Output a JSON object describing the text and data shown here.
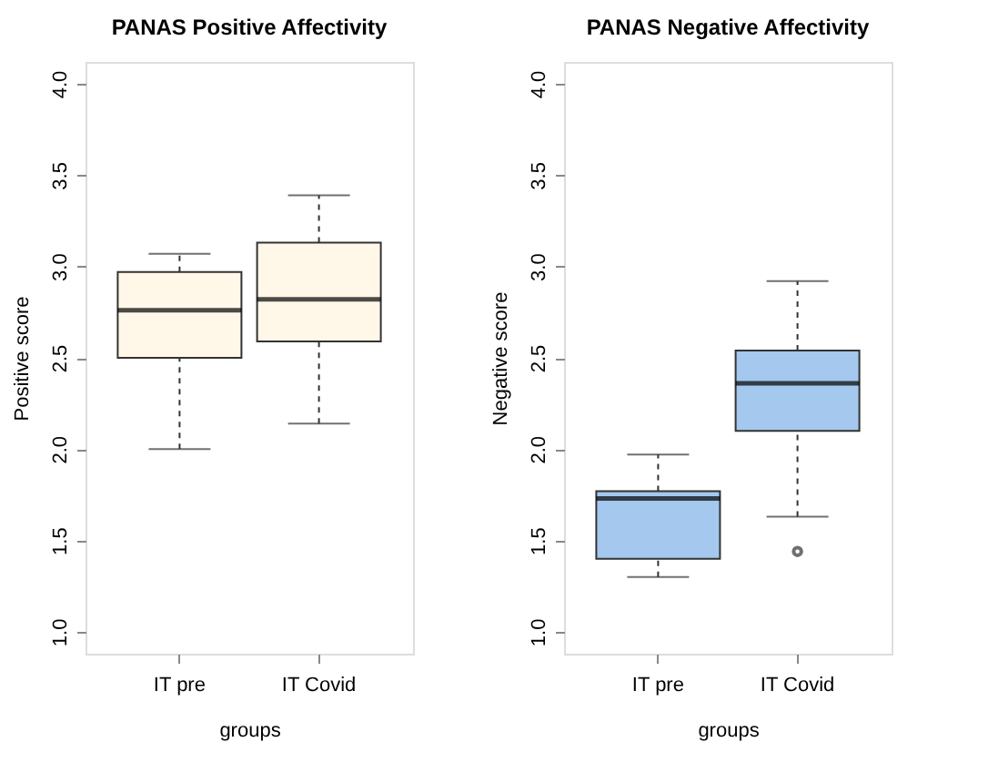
{
  "chart_data": [
    {
      "type": "box",
      "title": "PANAS Positive Affectivity",
      "xlabel": "groups",
      "ylabel": "Positive score",
      "categories": [
        "IT pre",
        "IT Covid"
      ],
      "color": "#fff8e8",
      "boxes": [
        {
          "low": 2.0,
          "q1": 2.5,
          "median": 2.76,
          "q3": 2.97,
          "high": 3.07
        },
        {
          "low": 2.14,
          "q1": 2.59,
          "median": 2.82,
          "q3": 3.13,
          "high": 3.39
        }
      ],
      "ylim": [
        0.88,
        4.12
      ],
      "yticks": [
        {
          "value": 1,
          "label": "1.0"
        },
        {
          "value": 1.5,
          "label": "1.5"
        },
        {
          "value": 2,
          "label": "2.0"
        },
        {
          "value": 2.5,
          "label": "2.5"
        },
        {
          "value": 3,
          "label": "3.0"
        },
        {
          "value": 3.5,
          "label": "3.5"
        },
        {
          "value": 4,
          "label": "4.0"
        }
      ]
    },
    {
      "type": "box",
      "title": "PANAS Negative Affectivity",
      "xlabel": "groups",
      "ylabel": "Negative score",
      "categories": [
        "IT pre",
        "IT Covid"
      ],
      "color": "#a4c8ee",
      "boxes": [
        {
          "low": 1.3,
          "q1": 1.4,
          "median": 1.73,
          "q3": 1.77,
          "high": 1.97
        },
        {
          "low": 1.63,
          "q1": 2.1,
          "median": 2.36,
          "q3": 2.54,
          "high": 2.92,
          "outliers": [
            1.44
          ]
        }
      ],
      "ylim": [
        0.88,
        4.12
      ],
      "yticks": [
        {
          "value": 1,
          "label": "1.0"
        },
        {
          "value": 1.5,
          "label": "1.5"
        },
        {
          "value": 2,
          "label": "2.0"
        },
        {
          "value": 2.5,
          "label": "2.5"
        },
        {
          "value": 3,
          "label": "3.0"
        },
        {
          "value": 3.5,
          "label": "3.5"
        },
        {
          "value": 4,
          "label": "4.0"
        }
      ]
    }
  ]
}
